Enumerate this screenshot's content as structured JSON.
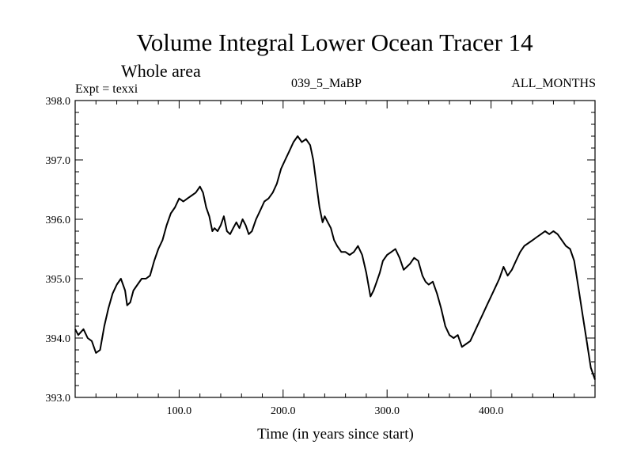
{
  "colors": {
    "background": "#ffffff",
    "ink": "#000000"
  },
  "chart_data": {
    "type": "line",
    "title": "Volume Integral Lower Ocean Tracer 14",
    "subtitle": "Whole area",
    "header_left": "Expt = texxi",
    "header_center": "039_5_MaBP",
    "header_right": "ALL_MONTHS",
    "xlabel": "Time (in years since start)",
    "ylabel": "",
    "xlim": [
      0,
      500
    ],
    "ylim": [
      393.0,
      398.0
    ],
    "grid": false,
    "x_ticks": [
      {
        "value": 100,
        "label": "100.0"
      },
      {
        "value": 200,
        "label": "200.0"
      },
      {
        "value": 300,
        "label": "300.0"
      },
      {
        "value": 400,
        "label": "400.0"
      }
    ],
    "y_ticks": [
      {
        "value": 393.0,
        "label": "393.0"
      },
      {
        "value": 394.0,
        "label": "394.0"
      },
      {
        "value": 395.0,
        "label": "395.0"
      },
      {
        "value": 396.0,
        "label": "396.0"
      },
      {
        "value": 397.0,
        "label": "397.0"
      },
      {
        "value": 398.0,
        "label": "398.0"
      }
    ],
    "series": [
      {
        "name": "Volume Integral Lower Ocean Tracer 14",
        "x": [
          0,
          3,
          8,
          12,
          16,
          20,
          24,
          28,
          32,
          36,
          40,
          44,
          48,
          50,
          53,
          56,
          60,
          64,
          68,
          72,
          76,
          80,
          84,
          88,
          92,
          96,
          100,
          104,
          108,
          112,
          116,
          120,
          123,
          126,
          129,
          132,
          134,
          137,
          140,
          143,
          146,
          149,
          152,
          155,
          158,
          161,
          164,
          167,
          170,
          174,
          178,
          182,
          186,
          190,
          194,
          198,
          202,
          206,
          210,
          214,
          218,
          222,
          226,
          229,
          232,
          235,
          238,
          240,
          243,
          246,
          249,
          252,
          256,
          260,
          264,
          268,
          272,
          276,
          280,
          284,
          287,
          290,
          293,
          296,
          300,
          304,
          308,
          312,
          316,
          319,
          322,
          326,
          330,
          334,
          337,
          340,
          344,
          348,
          352,
          356,
          360,
          364,
          368,
          372,
          376,
          380,
          384,
          388,
          392,
          396,
          400,
          404,
          408,
          412,
          416,
          420,
          424,
          428,
          432,
          436,
          440,
          444,
          448,
          452,
          456,
          460,
          464,
          468,
          472,
          476,
          480,
          484,
          488,
          492,
          496,
          500
        ],
        "values": [
          394.15,
          394.05,
          394.15,
          394.0,
          393.95,
          393.75,
          393.8,
          394.2,
          394.5,
          394.75,
          394.9,
          395.0,
          394.8,
          394.55,
          394.6,
          394.8,
          394.9,
          395.0,
          395.0,
          395.05,
          395.3,
          395.5,
          395.65,
          395.9,
          396.1,
          396.2,
          396.35,
          396.3,
          396.35,
          396.4,
          396.45,
          396.55,
          396.45,
          396.2,
          396.05,
          395.8,
          395.85,
          395.8,
          395.9,
          396.05,
          395.8,
          395.75,
          395.85,
          395.95,
          395.85,
          396.0,
          395.9,
          395.75,
          395.8,
          396.0,
          396.15,
          396.3,
          396.35,
          396.45,
          396.6,
          396.85,
          397.0,
          397.15,
          397.3,
          397.4,
          397.3,
          397.35,
          397.25,
          397.0,
          396.6,
          396.2,
          395.95,
          396.05,
          395.95,
          395.85,
          395.65,
          395.55,
          395.45,
          395.45,
          395.4,
          395.45,
          395.55,
          395.4,
          395.1,
          394.7,
          394.8,
          394.95,
          395.1,
          395.3,
          395.4,
          395.45,
          395.5,
          395.35,
          395.15,
          395.2,
          395.25,
          395.35,
          395.3,
          395.05,
          394.95,
          394.9,
          394.95,
          394.75,
          394.5,
          394.2,
          394.05,
          394.0,
          394.05,
          393.85,
          393.9,
          393.95,
          394.1,
          394.25,
          394.4,
          394.55,
          394.7,
          394.85,
          395.0,
          395.2,
          395.05,
          395.15,
          395.3,
          395.45,
          395.55,
          395.6,
          395.65,
          395.7,
          395.75,
          395.8,
          395.75,
          395.8,
          395.75,
          395.65,
          395.55,
          395.5,
          395.3,
          394.85,
          394.4,
          393.95,
          393.5,
          393.3
        ]
      }
    ]
  }
}
